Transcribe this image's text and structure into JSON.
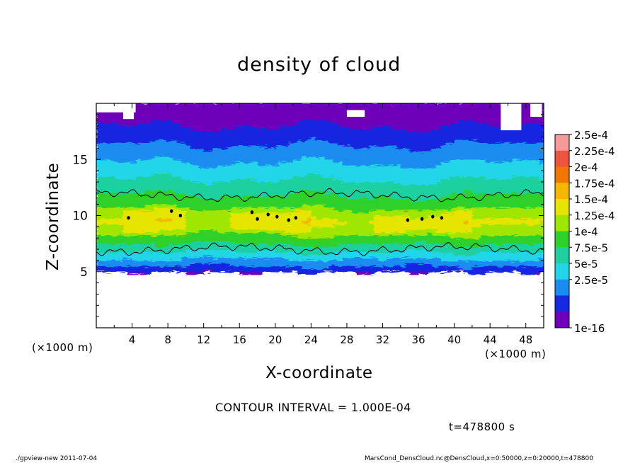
{
  "footer": {
    "left": "./gpview-new  2011-07-04",
    "right": "MarsCond_DensCloud.nc@DensCloud,x=0:50000,z=0:20000,t=478800"
  },
  "annotations": {
    "contour_interval": "CONTOUR INTERVAL = 1.000E-04",
    "time": "t=478800 s",
    "x_unit": "(×1000 m)",
    "y_unit": "(×1000 m)"
  },
  "chart_data": {
    "type": "heatmap",
    "title": "density of cloud",
    "xlabel": "X-coordinate",
    "ylabel": "Z-coordinate",
    "xlim": [
      0,
      50
    ],
    "ylim": [
      0,
      20
    ],
    "xticks": [
      "4",
      "8",
      "12",
      "16",
      "20",
      "24",
      "28",
      "32",
      "36",
      "40",
      "44",
      "48"
    ],
    "yticks": [
      "5",
      "10",
      "15"
    ],
    "colorbar": {
      "labels": [
        "2.5e-4",
        "2.25e-4",
        "2e-4",
        "1.75e-4",
        "1.5e-4",
        "1.25e-4",
        "1e-4",
        "7.5e-5",
        "5e-5",
        "2.5e-5",
        "1e-16"
      ],
      "colors": [
        "#f59a9a",
        "#ef5440",
        "#f07800",
        "#f5b800",
        "#e5e500",
        "#9fe600",
        "#2fd02a",
        "#1ed0a0",
        "#22d5e8",
        "#1a8cf0",
        "#1628e0",
        "#6d00b8"
      ]
    },
    "cloud_layer": {
      "bottom_km": 4.9,
      "top_km": 19.2,
      "peak_density_center_km": 9.6,
      "contour_levels": [
        0.0001,
        0.0002
      ]
    }
  }
}
